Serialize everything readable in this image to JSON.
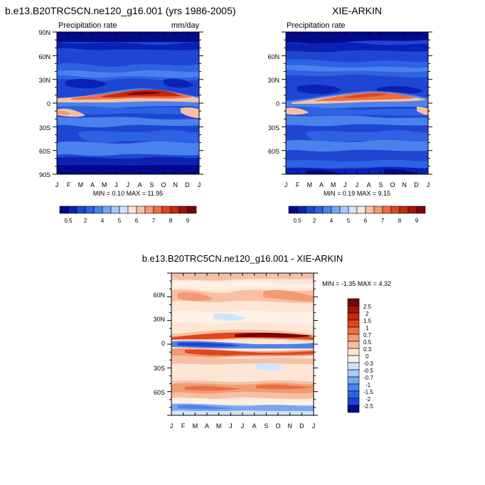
{
  "chart_data": [
    {
      "type": "heatmap",
      "title": "b.e13.B20TRC5CN.ne120_g16.001 (yrs 1986-2005)",
      "subtitle_left": "Precipitation rate",
      "subtitle_right": "mm/day",
      "x_ticks": [
        "J",
        "F",
        "M",
        "A",
        "M",
        "J",
        "J",
        "A",
        "S",
        "O",
        "N",
        "D",
        "J"
      ],
      "y_ticks": [
        "90N",
        "60N",
        "30N",
        "0",
        "30S",
        "60S",
        "90S"
      ],
      "stats": "MIN =  0.10 MAX =  11.95",
      "colorbar_labels": [
        "0.5",
        "2",
        "4",
        "5",
        "6",
        "7",
        "8",
        "9"
      ],
      "colors": [
        "#000a8c",
        "#0a22b4",
        "#1e46d2",
        "#2e62e4",
        "#4a82ec",
        "#78a6f2",
        "#a8c8f8",
        "#d2e4fb",
        "#fde6d6",
        "#f7c0a4",
        "#f29a72",
        "#ec6e46",
        "#e0461e",
        "#c42a0e",
        "#a0140a",
        "#7a0402"
      ]
    },
    {
      "type": "heatmap",
      "title": "XIE-ARKIN",
      "subtitle_left": "Precipitation rate",
      "x_ticks": [
        "J",
        "F",
        "M",
        "A",
        "M",
        "J",
        "J",
        "A",
        "S",
        "O",
        "N",
        "D",
        "J"
      ],
      "y_ticks": [
        "60N",
        "30N",
        "0",
        "30S",
        "60S"
      ],
      "stats": "MIN =  0.19 MAX =  9.15",
      "colorbar_labels": [
        "0.5",
        "2",
        "4",
        "5",
        "6",
        "7",
        "8",
        "9"
      ]
    },
    {
      "type": "heatmap",
      "title": "b.e13.B20TRC5CN.ne120_g16.001 - XIE-ARKIN",
      "x_ticks": [
        "J",
        "F",
        "M",
        "A",
        "M",
        "J",
        "J",
        "A",
        "S",
        "O",
        "N",
        "D",
        "J"
      ],
      "y_ticks": [
        "60N",
        "30N",
        "0",
        "30S",
        "60S"
      ],
      "stats": "MIN = -1.35 MAX =   4.32",
      "colorbar_labels": [
        "2.5",
        "2",
        "1.5",
        "1",
        "0.7",
        "0.5",
        "0.3",
        "0",
        "-0.3",
        "-0.5",
        "-0.7",
        "-1",
        "-1.5",
        "-2",
        "-2.5"
      ],
      "colors": [
        "#7a0402",
        "#a0140a",
        "#c42a0e",
        "#e0461e",
        "#ec6e46",
        "#f29a72",
        "#f7c0a4",
        "#fde6d6",
        "#fdf1e6",
        "#d2e4fb",
        "#a8c8f8",
        "#78a6f2",
        "#4a82ec",
        "#2e62e4",
        "#1e46d2",
        "#000a8c"
      ]
    }
  ]
}
